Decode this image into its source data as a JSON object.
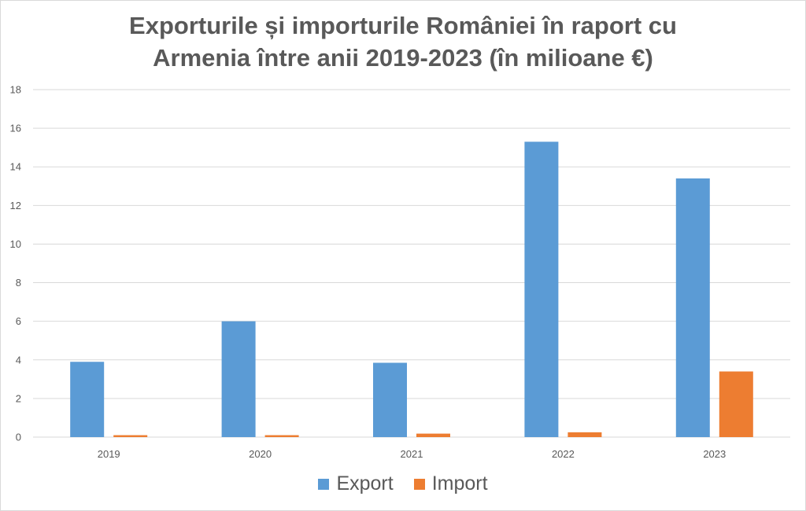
{
  "chart_data": {
    "type": "bar",
    "title_lines": [
      "Exporturile și importurile României în raport cu",
      "Armenia între anii 2019-2023 (în milioane €)"
    ],
    "categories": [
      "2019",
      "2020",
      "2021",
      "2022",
      "2023"
    ],
    "series": [
      {
        "name": "Export",
        "color": "#5b9bd5",
        "values": [
          3.9,
          6.0,
          3.85,
          15.3,
          13.4
        ]
      },
      {
        "name": "Import",
        "color": "#ed7d31",
        "values": [
          0.1,
          0.1,
          0.18,
          0.25,
          3.4
        ]
      }
    ],
    "xlabel": "",
    "ylabel": "",
    "ylim": [
      0,
      18
    ],
    "yticks": [
      0,
      2,
      4,
      6,
      8,
      10,
      12,
      14,
      16,
      18
    ],
    "grid": true,
    "legend_position": "bottom"
  }
}
